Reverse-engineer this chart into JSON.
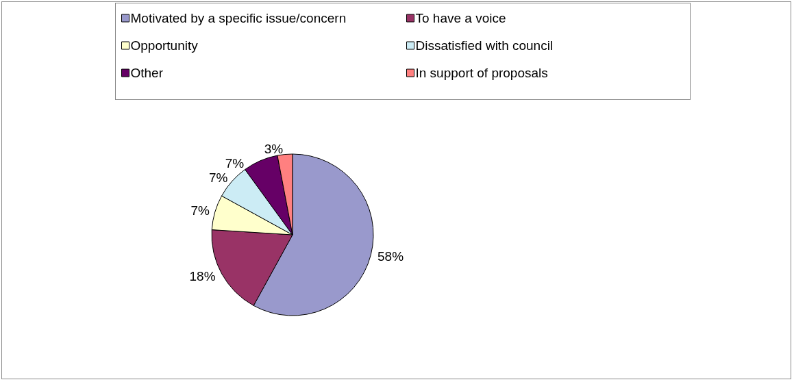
{
  "chart_data": {
    "type": "pie",
    "categories": [
      "Motivated by a specific issue/concern",
      "To have a voice",
      "Opportunity",
      "Dissatisfied with council",
      "Other",
      "In support of proposals"
    ],
    "values": [
      58,
      18,
      7,
      7,
      7,
      3
    ],
    "value_labels": [
      "58%",
      "18%",
      "7%",
      "7%",
      "7%",
      "3%"
    ],
    "colors": [
      "#9999cc",
      "#993366",
      "#ffffcc",
      "#ccecf5",
      "#660066",
      "#ff8080"
    ],
    "legend": "top"
  }
}
